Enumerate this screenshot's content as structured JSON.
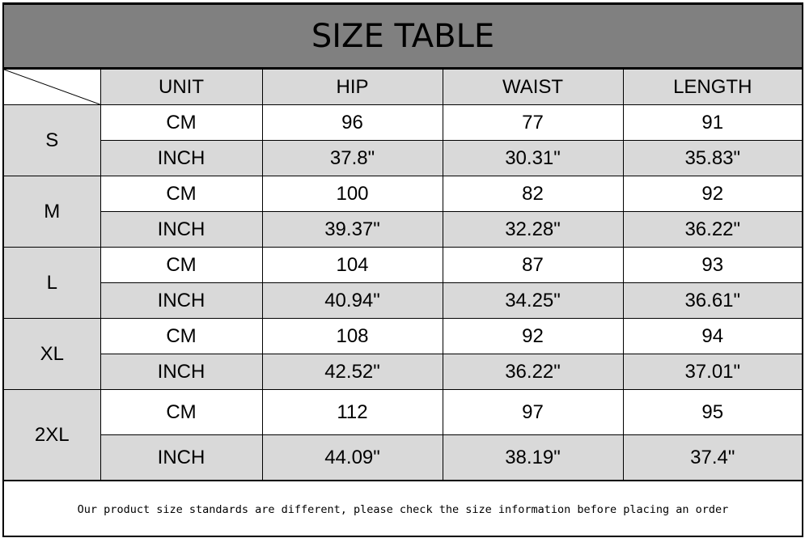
{
  "title": "SIZE TABLE",
  "headers": [
    "UNIT",
    "HIP",
    "WAIST",
    "LENGTH"
  ],
  "sizes": [
    {
      "size": "S",
      "rows": [
        [
          "CM",
          "96",
          "77",
          "91"
        ],
        [
          "INCH",
          "37.8\"",
          "30.31\"",
          "35.83\""
        ]
      ]
    },
    {
      "size": "M",
      "rows": [
        [
          "CM",
          "100",
          "82",
          "92"
        ],
        [
          "INCH",
          "39.37\"",
          "32.28\"",
          "36.22\""
        ]
      ]
    },
    {
      "size": "L",
      "rows": [
        [
          "CM",
          "104",
          "87",
          "93"
        ],
        [
          "INCH",
          "40.94\"",
          "34.25\"",
          "36.61\""
        ]
      ]
    },
    {
      "size": "XL",
      "rows": [
        [
          "CM",
          "108",
          "92",
          "94"
        ],
        [
          "INCH",
          "42.52\"",
          "36.22\"",
          "37.01\""
        ]
      ]
    },
    {
      "size": "2XL",
      "rows": [
        [
          "CM",
          "112",
          "97",
          "95"
        ],
        [
          "INCH",
          "44.09\"",
          "38.19\"",
          "37.4\""
        ]
      ]
    }
  ],
  "footer": "Our product size standards are different, please check the size information before placing an order",
  "colors": {
    "title_bg": "#808080",
    "shaded": "#d9d9d9"
  }
}
